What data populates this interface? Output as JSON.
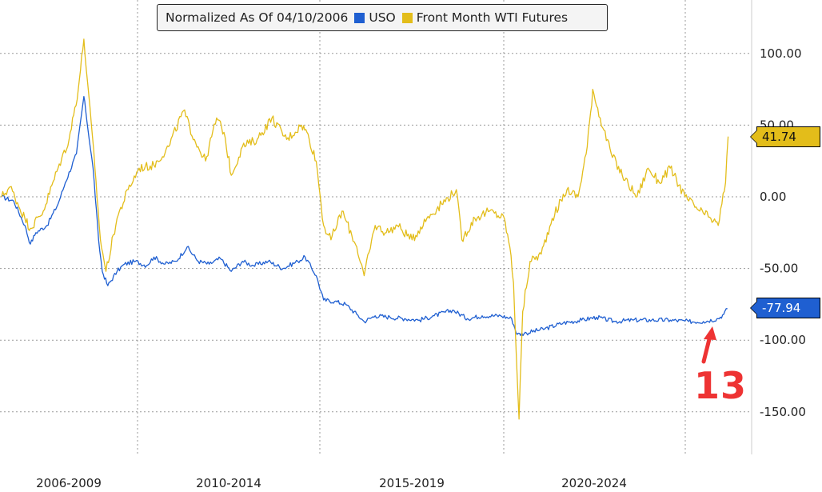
{
  "legend": {
    "title": "Normalized As Of 04/10/2006",
    "series1": "USO",
    "series2": "Front Month WTI Futures"
  },
  "last_values": {
    "uso": "-77.94",
    "wti": "41.74"
  },
  "annotation": "13",
  "colors": {
    "uso": "#1f5fd1",
    "wti": "#e3bd1a",
    "grid": "#9a9a9a",
    "annotation": "#ee3333"
  },
  "chart_data": {
    "type": "line",
    "title": "Normalized As Of 04/10/2006",
    "x_labels": [
      "2006-2009",
      "2010-2014",
      "2015-2019",
      "2020-2024"
    ],
    "ylim": [
      -170,
      120
    ],
    "y_ticks": [
      "100.00",
      "50.00",
      "0.00",
      "-50.00",
      "-100.00",
      "-150.00"
    ],
    "y_tick_values": [
      100,
      50,
      0,
      -50,
      -100,
      -150
    ],
    "grid": true,
    "legend_placement": "top-center",
    "x_domain": [
      2006.27,
      2026.0
    ],
    "series": [
      {
        "name": "USO",
        "color": "#1f5fd1",
        "points": [
          [
            2006.27,
            0
          ],
          [
            2006.6,
            -3
          ],
          [
            2006.9,
            -20
          ],
          [
            2007.05,
            -33
          ],
          [
            2007.2,
            -25
          ],
          [
            2007.5,
            -20
          ],
          [
            2007.8,
            -5
          ],
          [
            2008.0,
            10
          ],
          [
            2008.3,
            30
          ],
          [
            2008.5,
            70
          ],
          [
            2008.55,
            60
          ],
          [
            2008.75,
            20
          ],
          [
            2008.9,
            -30
          ],
          [
            2009.0,
            -52
          ],
          [
            2009.15,
            -62
          ],
          [
            2009.4,
            -52
          ],
          [
            2009.6,
            -47
          ],
          [
            2009.9,
            -45
          ],
          [
            2010.2,
            -48
          ],
          [
            2010.4,
            -42
          ],
          [
            2010.7,
            -47
          ],
          [
            2011.0,
            -45
          ],
          [
            2011.3,
            -35
          ],
          [
            2011.6,
            -45
          ],
          [
            2011.9,
            -47
          ],
          [
            2012.2,
            -43
          ],
          [
            2012.5,
            -52
          ],
          [
            2012.8,
            -45
          ],
          [
            2013.1,
            -48
          ],
          [
            2013.5,
            -45
          ],
          [
            2013.9,
            -50
          ],
          [
            2014.3,
            -45
          ],
          [
            2014.5,
            -42
          ],
          [
            2014.8,
            -55
          ],
          [
            2015.0,
            -72
          ],
          [
            2015.3,
            -73
          ],
          [
            2015.6,
            -75
          ],
          [
            2015.9,
            -82
          ],
          [
            2016.1,
            -87
          ],
          [
            2016.4,
            -83
          ],
          [
            2016.8,
            -84
          ],
          [
            2017.2,
            -85
          ],
          [
            2017.6,
            -86
          ],
          [
            2018.0,
            -83
          ],
          [
            2018.5,
            -79
          ],
          [
            2018.9,
            -85
          ],
          [
            2019.3,
            -83
          ],
          [
            2019.8,
            -83
          ],
          [
            2020.1,
            -85
          ],
          [
            2020.25,
            -96
          ],
          [
            2020.5,
            -95
          ],
          [
            2021.0,
            -92
          ],
          [
            2021.5,
            -88
          ],
          [
            2022.0,
            -86
          ],
          [
            2022.4,
            -84
          ],
          [
            2022.9,
            -87
          ],
          [
            2023.4,
            -86
          ],
          [
            2023.9,
            -86
          ],
          [
            2024.4,
            -86
          ],
          [
            2024.9,
            -87
          ],
          [
            2025.3,
            -87
          ],
          [
            2025.7,
            -85
          ],
          [
            2025.85,
            -82
          ],
          [
            2025.95,
            -78
          ]
        ]
      },
      {
        "name": "Front Month WTI Futures",
        "color": "#e3bd1a",
        "points": [
          [
            2006.27,
            0
          ],
          [
            2006.5,
            7
          ],
          [
            2006.9,
            -15
          ],
          [
            2007.05,
            -22
          ],
          [
            2007.4,
            -10
          ],
          [
            2007.8,
            20
          ],
          [
            2008.1,
            40
          ],
          [
            2008.35,
            75
          ],
          [
            2008.5,
            110
          ],
          [
            2008.6,
            80
          ],
          [
            2008.8,
            20
          ],
          [
            2008.95,
            -30
          ],
          [
            2009.1,
            -52
          ],
          [
            2009.4,
            -15
          ],
          [
            2009.7,
            5
          ],
          [
            2010.0,
            20
          ],
          [
            2010.4,
            22
          ],
          [
            2010.8,
            35
          ],
          [
            2011.2,
            60
          ],
          [
            2011.5,
            40
          ],
          [
            2011.8,
            25
          ],
          [
            2012.1,
            55
          ],
          [
            2012.3,
            45
          ],
          [
            2012.5,
            15
          ],
          [
            2012.8,
            35
          ],
          [
            2013.2,
            40
          ],
          [
            2013.6,
            55
          ],
          [
            2014.0,
            40
          ],
          [
            2014.4,
            50
          ],
          [
            2014.55,
            45
          ],
          [
            2014.8,
            25
          ],
          [
            2015.0,
            -20
          ],
          [
            2015.2,
            -30
          ],
          [
            2015.5,
            -10
          ],
          [
            2015.9,
            -35
          ],
          [
            2016.1,
            -55
          ],
          [
            2016.4,
            -20
          ],
          [
            2016.7,
            -25
          ],
          [
            2017.0,
            -20
          ],
          [
            2017.4,
            -30
          ],
          [
            2017.8,
            -15
          ],
          [
            2018.2,
            -5
          ],
          [
            2018.6,
            5
          ],
          [
            2018.75,
            -30
          ],
          [
            2019.1,
            -15
          ],
          [
            2019.5,
            -10
          ],
          [
            2019.9,
            -15
          ],
          [
            2020.05,
            -35
          ],
          [
            2020.15,
            -60
          ],
          [
            2020.3,
            -155
          ],
          [
            2020.4,
            -80
          ],
          [
            2020.6,
            -45
          ],
          [
            2020.9,
            -40
          ],
          [
            2021.2,
            -15
          ],
          [
            2021.6,
            5
          ],
          [
            2021.9,
            0
          ],
          [
            2022.15,
            35
          ],
          [
            2022.3,
            75
          ],
          [
            2022.5,
            55
          ],
          [
            2022.8,
            30
          ],
          [
            2023.1,
            15
          ],
          [
            2023.5,
            0
          ],
          [
            2023.8,
            20
          ],
          [
            2024.1,
            10
          ],
          [
            2024.4,
            20
          ],
          [
            2024.8,
            0
          ],
          [
            2025.2,
            -10
          ],
          [
            2025.5,
            -15
          ],
          [
            2025.7,
            -20
          ],
          [
            2025.8,
            -5
          ],
          [
            2025.9,
            10
          ],
          [
            2025.97,
            42
          ]
        ]
      }
    ]
  }
}
